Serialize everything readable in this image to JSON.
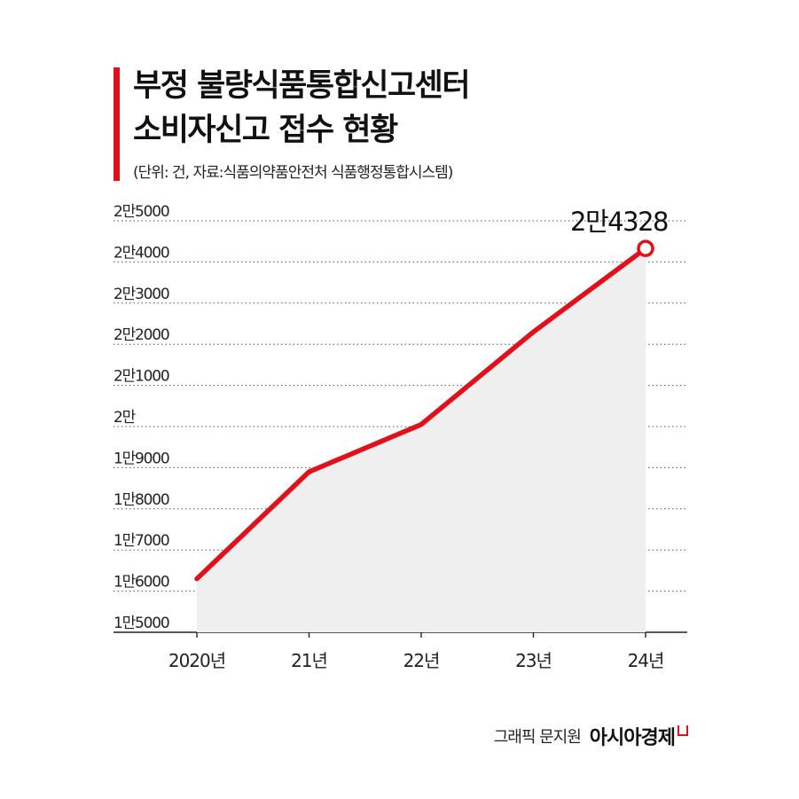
{
  "header": {
    "title_lines": [
      "부정 불량식품통합신고센터",
      "소비자신고 접수 현황"
    ],
    "subtitle": "(단위: 건, 자료:식품의약품안전처 식품행정통합시스템)"
  },
  "footer": {
    "credit": "그래픽 문지원",
    "logo": "아시아경제"
  },
  "colors": {
    "line": "#e3101b",
    "area": "#efefef",
    "grid": "#555555",
    "accent_bar": "#e3101b"
  },
  "chart_data": {
    "type": "area",
    "title": "부정 불량식품통합신고센터 소비자신고 접수 현황",
    "categories": [
      "2020년",
      "21년",
      "22년",
      "23년",
      "24년"
    ],
    "values": [
      16300,
      18900,
      20050,
      22300,
      24328
    ],
    "ylim": [
      15000,
      25000
    ],
    "yticks": [
      25000,
      24000,
      23000,
      22000,
      21000,
      20000,
      19000,
      18000,
      17000,
      16000,
      15000
    ],
    "ytick_labels": [
      "2만5000",
      "2만4000",
      "2만3000",
      "2만2000",
      "2만1000",
      "2만",
      "1만9000",
      "1만8000",
      "1만7000",
      "1만6000",
      "1만5000"
    ],
    "data_labels": [
      {
        "index": 4,
        "text": "2만4328"
      }
    ],
    "grid": "dotted-horizontal",
    "legend": "none"
  }
}
